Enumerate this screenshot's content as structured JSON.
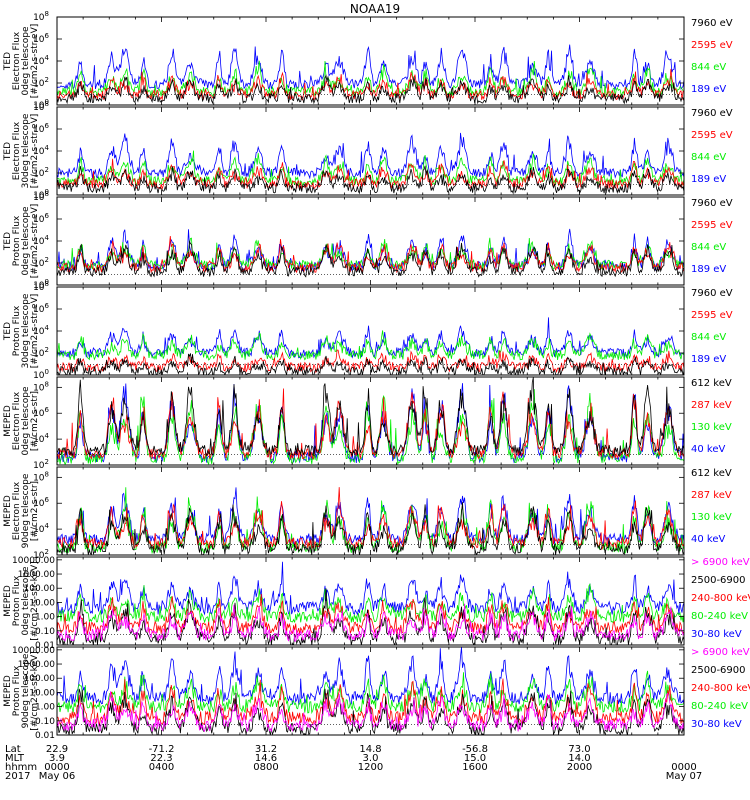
{
  "title": "NOAA19",
  "colors": {
    "black": "#000000",
    "red": "#ff0000",
    "green": "#00ee00",
    "blue": "#0000ff",
    "magenta": "#ff00ff"
  },
  "chart_data": [
    {
      "type": "line",
      "panel": "ted-electron-0deg",
      "ylabel": [
        "TED",
        "Electron Flux",
        "0deg telescope",
        "[#/cm2-s-str-eV]"
      ],
      "yticks": [
        "10^0",
        "10^2",
        "10^4",
        "10^6",
        "10^8"
      ],
      "ylim_log10": [
        0,
        8
      ],
      "legend": [
        {
          "label": "7960 eV",
          "color": "black"
        },
        {
          "label": "2595 eV",
          "color": "red"
        },
        {
          "label": "844 eV",
          "color": "green"
        },
        {
          "label": "189 eV",
          "color": "blue"
        }
      ],
      "series": [
        {
          "name": "189 eV",
          "color": "blue",
          "base": 1.9,
          "peak": 5.0
        },
        {
          "name": "844 eV",
          "color": "green",
          "base": 1.2,
          "peak": 3.2
        },
        {
          "name": "2595 eV",
          "color": "red",
          "base": 0.9,
          "peak": 2.5
        },
        {
          "name": "7960 eV",
          "color": "black",
          "base": 0.6,
          "peak": 2.2
        }
      ]
    },
    {
      "type": "line",
      "panel": "ted-electron-30deg",
      "ylabel": [
        "TED",
        "Electron Flux",
        "30deg telescope",
        "[#/cm2-s-str-eV]"
      ],
      "yticks": [
        "10^0",
        "10^2",
        "10^4",
        "10^6",
        "10^8"
      ],
      "ylim_log10": [
        0,
        8
      ],
      "legend": [
        {
          "label": "7960 eV",
          "color": "black"
        },
        {
          "label": "2595 eV",
          "color": "red"
        },
        {
          "label": "844 eV",
          "color": "green"
        },
        {
          "label": "189 eV",
          "color": "blue"
        }
      ],
      "series": [
        {
          "name": "189 eV",
          "color": "blue",
          "base": 2.0,
          "peak": 4.9
        },
        {
          "name": "844 eV",
          "color": "green",
          "base": 1.3,
          "peak": 3.3
        },
        {
          "name": "2595 eV",
          "color": "red",
          "base": 1.0,
          "peak": 2.6
        },
        {
          "name": "7960 eV",
          "color": "black",
          "base": 0.6,
          "peak": 2.2
        }
      ]
    },
    {
      "type": "line",
      "panel": "ted-proton-0deg",
      "ylabel": [
        "TED",
        "Proton Flux",
        "0deg telescope",
        "[#/cm2-s-str-eV]"
      ],
      "yticks": [
        "10^0",
        "10^2",
        "10^4",
        "10^6",
        "10^8"
      ],
      "ylim_log10": [
        0,
        8
      ],
      "legend": [
        {
          "label": "7960 eV",
          "color": "black"
        },
        {
          "label": "2595 eV",
          "color": "red"
        },
        {
          "label": "844 eV",
          "color": "green"
        },
        {
          "label": "189 eV",
          "color": "blue"
        }
      ],
      "series": [
        {
          "name": "189 eV",
          "color": "blue",
          "base": 1.7,
          "peak": 4.3
        },
        {
          "name": "844 eV",
          "color": "green",
          "base": 1.8,
          "peak": 3.8
        },
        {
          "name": "2595 eV",
          "color": "red",
          "base": 1.6,
          "peak": 3.6
        },
        {
          "name": "7960 eV",
          "color": "black",
          "base": 1.2,
          "peak": 3.4
        }
      ]
    },
    {
      "type": "line",
      "panel": "ted-proton-30deg",
      "ylabel": [
        "TED",
        "Proton Flux",
        "30deg telescope",
        "[#/cm2-s-str-eV]"
      ],
      "yticks": [
        "10^0",
        "10^2",
        "10^4",
        "10^6",
        "10^8"
      ],
      "ylim_log10": [
        0,
        8
      ],
      "legend": [
        {
          "label": "7960 eV",
          "color": "black"
        },
        {
          "label": "2595 eV",
          "color": "red"
        },
        {
          "label": "844 eV",
          "color": "green"
        },
        {
          "label": "189 eV",
          "color": "blue"
        }
      ],
      "series": [
        {
          "name": "189 eV",
          "color": "blue",
          "base": 2.0,
          "peak": 4.0
        },
        {
          "name": "844 eV",
          "color": "green",
          "base": 1.8,
          "peak": 3.4
        },
        {
          "name": "2595 eV",
          "color": "red",
          "base": 0.7,
          "peak": 1.8
        },
        {
          "name": "7960 eV",
          "color": "black",
          "base": 0.3,
          "peak": 1.4
        }
      ]
    },
    {
      "type": "line",
      "panel": "meped-electron-0deg",
      "ylabel": [
        "MEPED",
        "Electron Flux",
        "0deg telescope",
        "[#/cm2-s-str]"
      ],
      "yticks": [
        "10^2",
        "10^4",
        "10^6",
        "10^8"
      ],
      "ylim_log10": [
        2,
        8.8
      ],
      "legend": [
        {
          "label": "612 keV",
          "color": "black"
        },
        {
          "label": "287 keV",
          "color": "red"
        },
        {
          "label": "130 keV",
          "color": "green"
        },
        {
          "label": "40 keV",
          "color": "blue"
        }
      ],
      "series": [
        {
          "name": "40 keV",
          "color": "blue",
          "base": 2.6,
          "peak": 7.4
        },
        {
          "name": "130 keV",
          "color": "green",
          "base": 2.5,
          "peak": 6.8
        },
        {
          "name": "287 keV",
          "color": "red",
          "base": 2.9,
          "peak": 7.0
        },
        {
          "name": "612 keV",
          "color": "black",
          "base": 3.1,
          "peak": 7.6
        }
      ]
    },
    {
      "type": "line",
      "panel": "meped-electron-90deg",
      "ylabel": [
        "MEPED",
        "Electron Flux",
        "90deg telescope",
        "[#/cm2-s-str]"
      ],
      "yticks": [
        "10^2",
        "10^4",
        "10^6",
        "10^8"
      ],
      "ylim_log10": [
        2,
        8.8
      ],
      "legend": [
        {
          "label": "612 keV",
          "color": "black"
        },
        {
          "label": "287 keV",
          "color": "red"
        },
        {
          "label": "130 keV",
          "color": "green"
        },
        {
          "label": "40 keV",
          "color": "blue"
        }
      ],
      "series": [
        {
          "name": "40 keV",
          "color": "blue",
          "base": 3.2,
          "peak": 6.4
        },
        {
          "name": "130 keV",
          "color": "green",
          "base": 2.6,
          "peak": 5.8
        },
        {
          "name": "287 keV",
          "color": "red",
          "base": 2.9,
          "peak": 5.6
        },
        {
          "name": "612 keV",
          "color": "black",
          "base": 2.4,
          "peak": 5.4
        }
      ]
    },
    {
      "type": "line",
      "panel": "meped-proton-0deg",
      "ylabel": [
        "MEPED",
        "Proton Flux",
        "0deg telescope",
        "[#/cm2-s-str-keV]"
      ],
      "yticks": [
        "0.01",
        "0.10",
        "1.00",
        "10.00",
        "100.00",
        "1000.00",
        "10000.00"
      ],
      "ylim_log10": [
        -2,
        4.2
      ],
      "legend": [
        {
          "label": "> 6900 keV",
          "color": "magenta"
        },
        {
          "label": "2500-6900",
          "color": "black"
        },
        {
          "label": "240-800 keV",
          "color": "red"
        },
        {
          "label": "80-240 keV",
          "color": "green"
        },
        {
          "label": "30-80 keV",
          "color": "blue"
        }
      ],
      "series": [
        {
          "name": "30-80 keV",
          "color": "blue",
          "base": 0.6,
          "peak": 2.6
        },
        {
          "name": "80-240 keV",
          "color": "green",
          "base": 0.0,
          "peak": 1.6
        },
        {
          "name": "240-800 keV",
          "color": "red",
          "base": -0.8,
          "peak": 1.0
        },
        {
          "name": "2500-6900",
          "color": "black",
          "base": -1.6,
          "peak": 0.6
        },
        {
          "name": "> 6900 keV",
          "color": "magenta",
          "base": -1.3,
          "peak": 0.3
        }
      ]
    },
    {
      "type": "line",
      "panel": "meped-proton-90deg",
      "ylabel": [
        "MEPED",
        "Proton Flux",
        "90deg telescope",
        "[#/cm2-s-str-keV]"
      ],
      "yticks": [
        "0.01",
        "0.10",
        "1.00",
        "10.00",
        "100.00",
        "1000.00",
        "10000.00"
      ],
      "ylim_log10": [
        -2,
        4.2
      ],
      "legend": [
        {
          "label": "> 6900 keV",
          "color": "magenta"
        },
        {
          "label": "2500-6900",
          "color": "black"
        },
        {
          "label": "240-800 keV",
          "color": "red"
        },
        {
          "label": "80-240 keV",
          "color": "green"
        },
        {
          "label": "30-80 keV",
          "color": "blue"
        }
      ],
      "series": [
        {
          "name": "30-80 keV",
          "color": "blue",
          "base": 0.6,
          "peak": 3.2
        },
        {
          "name": "80-240 keV",
          "color": "green",
          "base": 0.0,
          "peak": 1.8
        },
        {
          "name": "240-800 keV",
          "color": "red",
          "base": -0.8,
          "peak": 1.2
        },
        {
          "name": "2500-6900",
          "color": "black",
          "base": -1.6,
          "peak": 0.8
        },
        {
          "name": "> 6900 keV",
          "color": "magenta",
          "base": -1.3,
          "peak": 0.5
        }
      ]
    }
  ],
  "xaxis": {
    "rows": [
      {
        "label": "Lat",
        "values": [
          "22.9",
          "-71.2",
          "31.2",
          "14.8",
          "-56.8",
          "73.0"
        ]
      },
      {
        "label": "MLT",
        "values": [
          "3.9",
          "22.3",
          "14.6",
          "3.0",
          "15.0",
          "14.0"
        ]
      },
      {
        "label": "hhmm",
        "values": [
          "0000",
          "0400",
          "0800",
          "1200",
          "1600",
          "2000",
          "0000"
        ]
      },
      {
        "label": "2017",
        "values": [
          "May 06",
          "May 07"
        ]
      }
    ],
    "xlim_hours": [
      0,
      24
    ],
    "tick_hours": [
      0,
      4,
      8,
      12,
      16,
      20,
      24
    ]
  },
  "pass_times_hours": [
    0.9,
    2.1,
    2.6,
    3.3,
    4.4,
    5.1,
    6.2,
    6.8,
    7.7,
    8.6,
    10.3,
    10.8,
    11.9,
    12.5,
    13.6,
    14.1,
    14.7,
    15.5,
    16.6,
    17.1,
    18.2,
    18.8,
    19.6,
    20.4,
    22.1,
    22.6,
    23.4
  ]
}
